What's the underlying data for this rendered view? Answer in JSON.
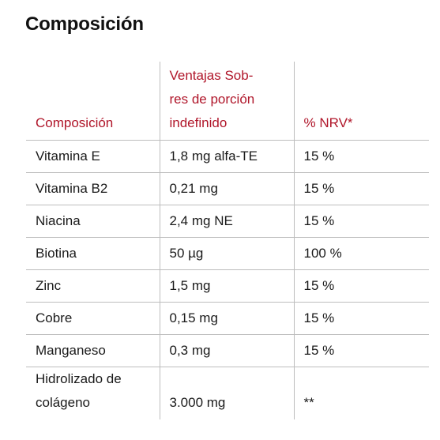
{
  "page": {
    "title": "Composición"
  },
  "table": {
    "headers": [
      "Composición",
      "Ventajas Sob-res de porción indefinido",
      "% NRV*"
    ],
    "header_lines": {
      "col2": [
        "Ventajas Sob-",
        "res de porción",
        "indefinido"
      ]
    },
    "rows": [
      [
        "Vitamina E",
        "1,8 mg alfa-TE",
        "15 %"
      ],
      [
        "Vitamina B2",
        "0,21 mg",
        "15 %"
      ],
      [
        "Niacina",
        "2,4 mg NE",
        "15 %"
      ],
      [
        "Biotina",
        "50 µg",
        "100 %"
      ],
      [
        "Zinc",
        "1,5 mg",
        "15 %"
      ],
      [
        "Cobre",
        "0,15 mg",
        "15 %"
      ],
      [
        "Manganeso",
        "0,3 mg",
        "15 %"
      ],
      [
        "Hidrolizado de colágeno",
        "3.000 mg",
        "**"
      ]
    ],
    "last_row_lines": {
      "col1": [
        "Hidrolizado de",
        "colágeno"
      ]
    }
  },
  "colors": {
    "header_text": "#b0162a",
    "body_text": "#1a1a1a",
    "rule": "#bdbdbd"
  }
}
